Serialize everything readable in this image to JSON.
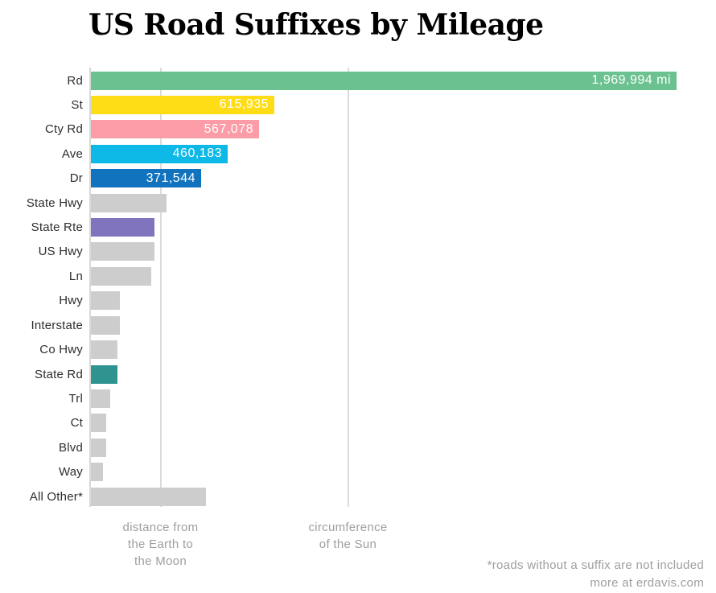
{
  "title": "US Road Suffixes by Mileage",
  "chart_data": {
    "type": "bar",
    "orientation": "horizontal",
    "title": "US Road Suffixes by Mileage",
    "unit": "miles",
    "categories": [
      "Rd",
      "St",
      "Cty Rd",
      "Ave",
      "Dr",
      "State Hwy",
      "State Rte",
      "US Hwy",
      "Ln",
      "Hwy",
      "Interstate",
      "Co Hwy",
      "State Rd",
      "Trl",
      "Ct",
      "Blvd",
      "Way",
      "All Other*"
    ],
    "values": [
      1969994,
      615935,
      567078,
      460183,
      371544,
      254000,
      214000,
      213000,
      202000,
      98000,
      97000,
      89000,
      89000,
      65000,
      51000,
      51000,
      41000,
      387000
    ],
    "bar_labels": [
      "1,969,994 mi",
      "615,935",
      "567,078",
      "460,183",
      "371,544",
      null,
      null,
      null,
      null,
      null,
      null,
      null,
      null,
      null,
      null,
      null,
      null,
      null
    ],
    "bar_colors": [
      "#6BC190",
      "#FFDD16",
      "#FB9CA7",
      "#0EB8E7",
      "#1173BD",
      "#CDCDCD",
      "#8074BE",
      "#CDCDCD",
      "#CDCDCD",
      "#CDCDCD",
      "#CDCDCD",
      "#CDCDCD",
      "#2F938F",
      "#CDCDCD",
      "#CDCDCD",
      "#CDCDCD",
      "#CDCDCD",
      "#CDCDCD"
    ],
    "x_axis_annotations": [
      {
        "lines": [
          "distance from",
          "the Earth to",
          "the Moon"
        ]
      },
      {
        "lines": [
          "circumference",
          "of the Sun"
        ]
      }
    ],
    "xlabel": "",
    "ylabel": "",
    "grid": "vertical gridlines at the two x-axis annotation positions",
    "legend": "none"
  },
  "footer": {
    "note": "*roads without a suffix are not included",
    "credit": "more at erdavis.com"
  },
  "colors": {
    "background": "#FFFFFF",
    "title_text": "#000000",
    "category_text": "#2E2E2E",
    "muted_text": "#9E9E9E",
    "bar_value_text": "#FFFFFF",
    "gridline": "#D8D8D8",
    "default_bar": "#CDCDCD"
  }
}
